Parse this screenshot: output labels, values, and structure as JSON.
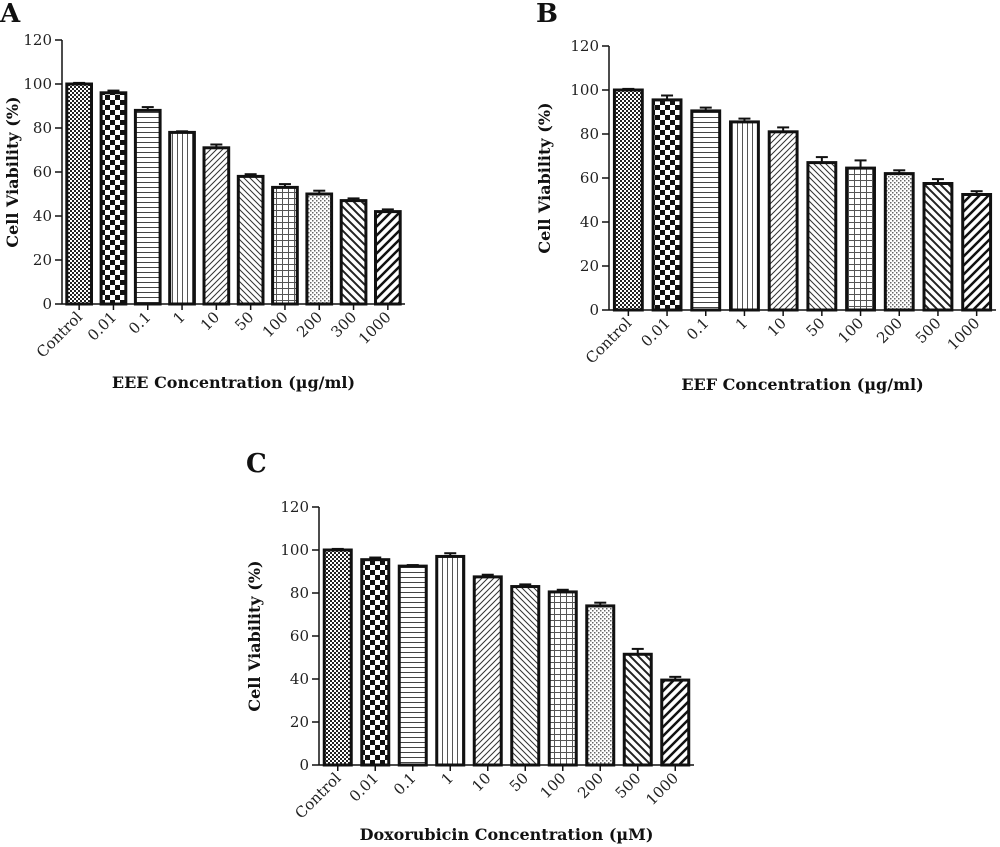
{
  "chart_data": [
    {
      "type": "bar",
      "panel": "A",
      "xlabel": "EEE Concentration (µg/ml)",
      "ylabel": "Cell Viability (%)",
      "ylim": [
        0,
        120
      ],
      "yticks": [
        0,
        20,
        40,
        60,
        80,
        100,
        120
      ],
      "categories": [
        "Control",
        "0.01",
        "0.1",
        "1",
        "10",
        "50",
        "100",
        "200",
        "300",
        "1000"
      ],
      "values": [
        100,
        96,
        88,
        78,
        71,
        58,
        53,
        50,
        47,
        42
      ],
      "errors": [
        0.5,
        1,
        1.5,
        0.5,
        1.5,
        1,
        1.5,
        1.5,
        1,
        1
      ]
    },
    {
      "type": "bar",
      "panel": "B",
      "xlabel": "EEF Concentration (µg/ml)",
      "ylabel": "Cell Viability (%)",
      "ylim": [
        0,
        120
      ],
      "yticks": [
        0,
        20,
        40,
        60,
        80,
        100,
        120
      ],
      "categories": [
        "Control",
        "0.01",
        "0.1",
        "1",
        "10",
        "50",
        "100",
        "200",
        "500",
        "1000"
      ],
      "values": [
        100,
        95.5,
        90.5,
        85.5,
        81,
        67,
        64.5,
        62,
        57.5,
        52.5
      ],
      "errors": [
        0.5,
        2,
        1.5,
        1.5,
        2,
        2.5,
        3.5,
        1.5,
        2,
        1.5
      ]
    },
    {
      "type": "bar",
      "panel": "C",
      "xlabel": "Doxorubicin Concentration (µM)",
      "ylabel": "Cell Viability (%)",
      "ylim": [
        0,
        120
      ],
      "yticks": [
        0,
        20,
        40,
        60,
        80,
        100,
        120
      ],
      "categories": [
        "Control",
        "0.01",
        "0.1",
        "1",
        "10",
        "50",
        "100",
        "200",
        "500",
        "1000"
      ],
      "values": [
        100,
        95.5,
        92.5,
        97,
        87.5,
        83,
        80.5,
        74,
        51.5,
        39.5
      ],
      "errors": [
        0.5,
        1,
        0.5,
        1.5,
        1,
        1,
        1,
        1.5,
        2.5,
        1.5
      ]
    }
  ]
}
